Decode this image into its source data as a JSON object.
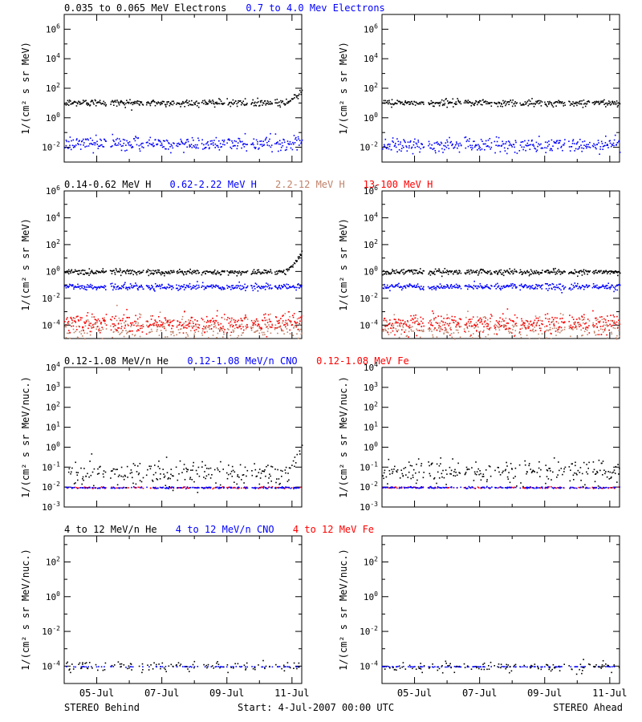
{
  "chart_data": {
    "type": "scatter",
    "x_ticks": [
      "05-Jul",
      "07-Jul",
      "09-Jul",
      "11-Jul"
    ],
    "x_tick_days": [
      1,
      3,
      5,
      7
    ],
    "x_range_days": [
      0,
      7.3
    ],
    "footer": {
      "left": "STEREO Behind",
      "center": "Start:  4-Jul-2007 00:00 UTC",
      "right": "STEREO Ahead"
    },
    "rows": [
      {
        "ylabel": "1/(cm² s sr MeV)",
        "ylog": [
          -3,
          7
        ],
        "yticks": [
          -2,
          0,
          2,
          4,
          6
        ],
        "tick_format": "pow10",
        "legend": [
          {
            "label": "0.035 to 0.065 MeV Electrons",
            "color": "#000000"
          },
          {
            "label": "0.7 to 4.0 Mev Electrons",
            "color": "#0000ff"
          }
        ],
        "panels": [
          {
            "spacecraft": "STEREO Behind",
            "series": [
              {
                "name": "0.035 to 0.065 MeV Electrons",
                "color": "#000000",
                "log_level": 1.05,
                "spread": 0.12,
                "density": 1.0,
                "end_rise": 0.8
              },
              {
                "name": "0.7 to 4.0 Mev Electrons",
                "color": "#0000ff",
                "log_level": -1.7,
                "spread": 0.22,
                "density": 1.0
              }
            ]
          },
          {
            "spacecraft": "STEREO Ahead",
            "series": [
              {
                "name": "0.035 to 0.065 MeV Electrons",
                "color": "#000000",
                "log_level": 1.05,
                "spread": 0.12,
                "density": 1.0
              },
              {
                "name": "0.7 to 4.0 Mev Electrons",
                "color": "#0000ff",
                "log_level": -1.8,
                "spread": 0.25,
                "density": 1.0
              }
            ]
          }
        ]
      },
      {
        "ylabel": "1/(cm² s sr MeV)",
        "ylog": [
          -5,
          6
        ],
        "yticks": [
          -4,
          -2,
          0,
          2,
          4,
          6
        ],
        "tick_format": "pow10",
        "legend": [
          {
            "label": "0.14-0.62 MeV H",
            "color": "#000000"
          },
          {
            "label": "0.62-2.22 MeV H",
            "color": "#0000ff"
          },
          {
            "label": "2.2-12 MeV H",
            "color": "#c0826a"
          },
          {
            "label": "13-100 MeV H",
            "color": "#ff0000"
          }
        ],
        "panels": [
          {
            "spacecraft": "STEREO Behind",
            "series": [
              {
                "name": "2.2-12 MeV H",
                "color": "#c0826a",
                "log_level": -4.2,
                "spread": 0.45,
                "density": 1.0
              },
              {
                "name": "13-100 MeV H",
                "color": "#ff0000",
                "log_level": -3.8,
                "spread": 0.35,
                "density": 1.0
              },
              {
                "name": "0.62-2.22 MeV H",
                "color": "#0000ff",
                "log_level": -1.1,
                "spread": 0.12,
                "density": 1.0
              },
              {
                "name": "0.14-0.62 MeV H",
                "color": "#000000",
                "log_level": 0.0,
                "spread": 0.1,
                "density": 1.0,
                "end_rise": 1.5
              }
            ]
          },
          {
            "spacecraft": "STEREO Ahead",
            "series": [
              {
                "name": "2.2-12 MeV H",
                "color": "#c0826a",
                "log_level": -4.2,
                "spread": 0.45,
                "density": 1.0
              },
              {
                "name": "13-100 MeV H",
                "color": "#ff0000",
                "log_level": -3.8,
                "spread": 0.35,
                "density": 1.0
              },
              {
                "name": "0.62-2.22 MeV H",
                "color": "#0000ff",
                "log_level": -1.1,
                "spread": 0.12,
                "density": 1.0
              },
              {
                "name": "0.14-0.62 MeV H",
                "color": "#000000",
                "log_level": 0.0,
                "spread": 0.1,
                "density": 1.0
              }
            ]
          }
        ]
      },
      {
        "ylabel": "1/(cm² s sr MeV/nuc.)",
        "ylog": [
          -3,
          4
        ],
        "yticks": [
          -3,
          -2,
          -1,
          0,
          1,
          2,
          3,
          4
        ],
        "tick_format": "pow10",
        "legend": [
          {
            "label": "0.12-1.08 MeV/n He",
            "color": "#000000"
          },
          {
            "label": "0.12-1.08 MeV/n CNO",
            "color": "#0000ff"
          },
          {
            "label": "0.12-1.08 MeV Fe",
            "color": "#ff0000"
          }
        ],
        "panels": [
          {
            "spacecraft": "STEREO Behind",
            "series": [
              {
                "name": "0.12-1.08 MeV Fe",
                "color": "#ff0000",
                "log_level": -2.0,
                "spread": 0.02,
                "density": 0.35
              },
              {
                "name": "0.12-1.08 MeV/n CNO",
                "color": "#0000ff",
                "log_level": -2.0,
                "spread": 0.02,
                "density": 0.5
              },
              {
                "name": "0.12-1.08 MeV/n He",
                "color": "#000000",
                "log_level": -1.3,
                "spread": 0.3,
                "density": 0.7,
                "end_rise": 1.7
              }
            ]
          },
          {
            "spacecraft": "STEREO Ahead",
            "series": [
              {
                "name": "0.12-1.08 MeV Fe",
                "color": "#ff0000",
                "log_level": -2.0,
                "spread": 0.02,
                "density": 0.35
              },
              {
                "name": "0.12-1.08 MeV/n CNO",
                "color": "#0000ff",
                "log_level": -2.0,
                "spread": 0.02,
                "density": 0.5
              },
              {
                "name": "0.12-1.08 MeV/n He",
                "color": "#000000",
                "log_level": -1.2,
                "spread": 0.3,
                "density": 0.7
              }
            ]
          }
        ]
      },
      {
        "ylabel": "1/(cm² s sr MeV/nuc.)",
        "ylog": [
          -5,
          3.5
        ],
        "yticks": [
          -4,
          -2,
          0,
          2
        ],
        "tick_format": "pow10",
        "legend": [
          {
            "label": "4 to 12 MeV/n He",
            "color": "#000000"
          },
          {
            "label": "4 to 12 MeV/n CNO",
            "color": "#0000ff"
          },
          {
            "label": "4 to 12 MeV Fe",
            "color": "#ff0000"
          }
        ],
        "panels": [
          {
            "spacecraft": "STEREO Behind",
            "series": [
              {
                "name": "4 to 12 MeV/n CNO",
                "color": "#0000ff",
                "log_level": -4.0,
                "spread": 0.01,
                "density": 0.25
              },
              {
                "name": "4 to 12 MeV/n He",
                "color": "#000000",
                "log_level": -4.0,
                "spread": 0.15,
                "density": 0.35
              }
            ]
          },
          {
            "spacecraft": "STEREO Ahead",
            "series": [
              {
                "name": "4 to 12 MeV/n CNO",
                "color": "#0000ff",
                "log_level": -4.0,
                "spread": 0.01,
                "density": 0.35
              },
              {
                "name": "4 to 12 MeV/n He",
                "color": "#000000",
                "log_level": -4.0,
                "spread": 0.15,
                "density": 0.3
              }
            ]
          }
        ]
      }
    ]
  }
}
